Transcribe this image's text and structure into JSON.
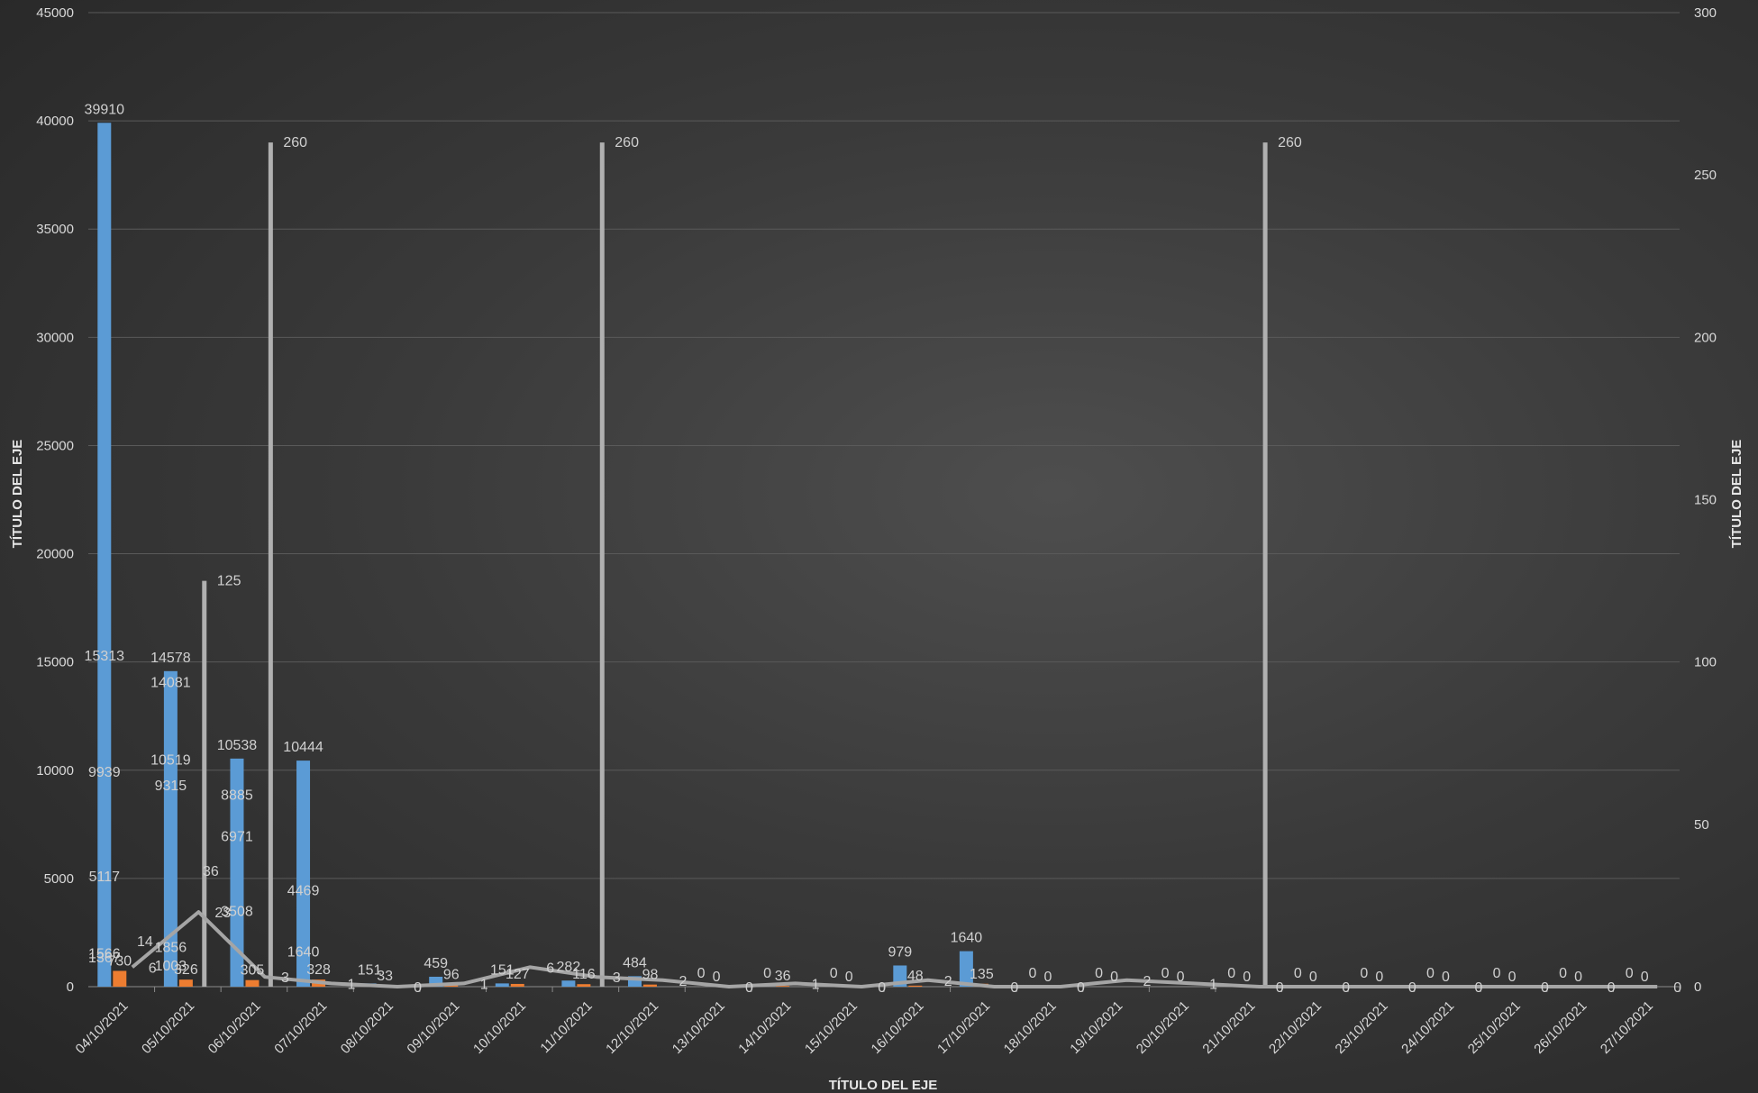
{
  "chart_data": {
    "type": "bar",
    "xlabel": "TÍTULO DEL EJE",
    "ylabel": "TÍTULO DEL EJE",
    "y2label": "TÍTULO DEL EJE",
    "ylim": [
      0,
      45000
    ],
    "y2lim": [
      0,
      300
    ],
    "yticks": [
      "0",
      "5000",
      "10000",
      "15000",
      "20000",
      "25000",
      "30000",
      "35000",
      "40000",
      "45000"
    ],
    "y2ticks": [
      "0",
      "50",
      "100",
      "150",
      "200",
      "250",
      "300"
    ],
    "grid": true,
    "categories": [
      "04/10/2021",
      "05/10/2021",
      "06/10/2021",
      "07/10/2021",
      "08/10/2021",
      "09/10/2021",
      "10/10/2021",
      "11/10/2021",
      "12/10/2021",
      "13/10/2021",
      "14/10/2021",
      "15/10/2021",
      "16/10/2021",
      "17/10/2021",
      "18/10/2021",
      "19/10/2021",
      "20/10/2021",
      "21/10/2021",
      "22/10/2021",
      "23/10/2021",
      "24/10/2021",
      "25/10/2021",
      "26/10/2021",
      "27/10/2021"
    ],
    "series": [
      {
        "axis": "primary",
        "kind": "bar",
        "color": "#5b9bd5",
        "values": [
          39910,
          14578,
          10538,
          10444,
          151,
          459,
          151,
          282,
          484,
          0,
          0,
          0,
          979,
          1640,
          0,
          0,
          0,
          0,
          0,
          0,
          0,
          0,
          0,
          0
        ]
      },
      {
        "axis": "primary",
        "kind": "bar",
        "color": "#ed7d31",
        "values": [
          730,
          326,
          305,
          328,
          33,
          96,
          127,
          116,
          98,
          0,
          36,
          0,
          48,
          135,
          0,
          0,
          0,
          0,
          0,
          0,
          0,
          0,
          0,
          0
        ]
      },
      {
        "axis": "secondary",
        "kind": "line",
        "color": "#a5a5a5",
        "values": [
          6,
          23,
          3,
          1,
          0,
          1,
          6,
          3,
          2,
          0,
          1,
          0,
          2,
          0,
          0,
          2,
          1,
          0,
          0,
          0,
          0,
          0,
          0,
          0
        ]
      },
      {
        "axis": "secondary",
        "kind": "spike",
        "color": "#b0b0b0",
        "values": [
          0,
          125,
          260,
          0,
          0,
          0,
          0,
          260,
          0,
          0,
          0,
          0,
          0,
          0,
          0,
          0,
          0,
          260,
          0,
          0,
          0,
          0,
          0,
          0
        ]
      }
    ],
    "extra_labels": [
      {
        "i": 0,
        "primary": [
          "15313",
          "9939",
          "5117",
          "1566",
          "1367"
        ]
      },
      {
        "i": 1,
        "primary": [
          "14081",
          "10519",
          "9315",
          "1856",
          "1003"
        ]
      },
      {
        "i": 2,
        "primary": [
          "8885",
          "6971",
          "3508"
        ]
      },
      {
        "i": 3,
        "primary": [
          "4469",
          "1640"
        ]
      }
    ],
    "label_14": "14",
    "label_36": "36"
  }
}
